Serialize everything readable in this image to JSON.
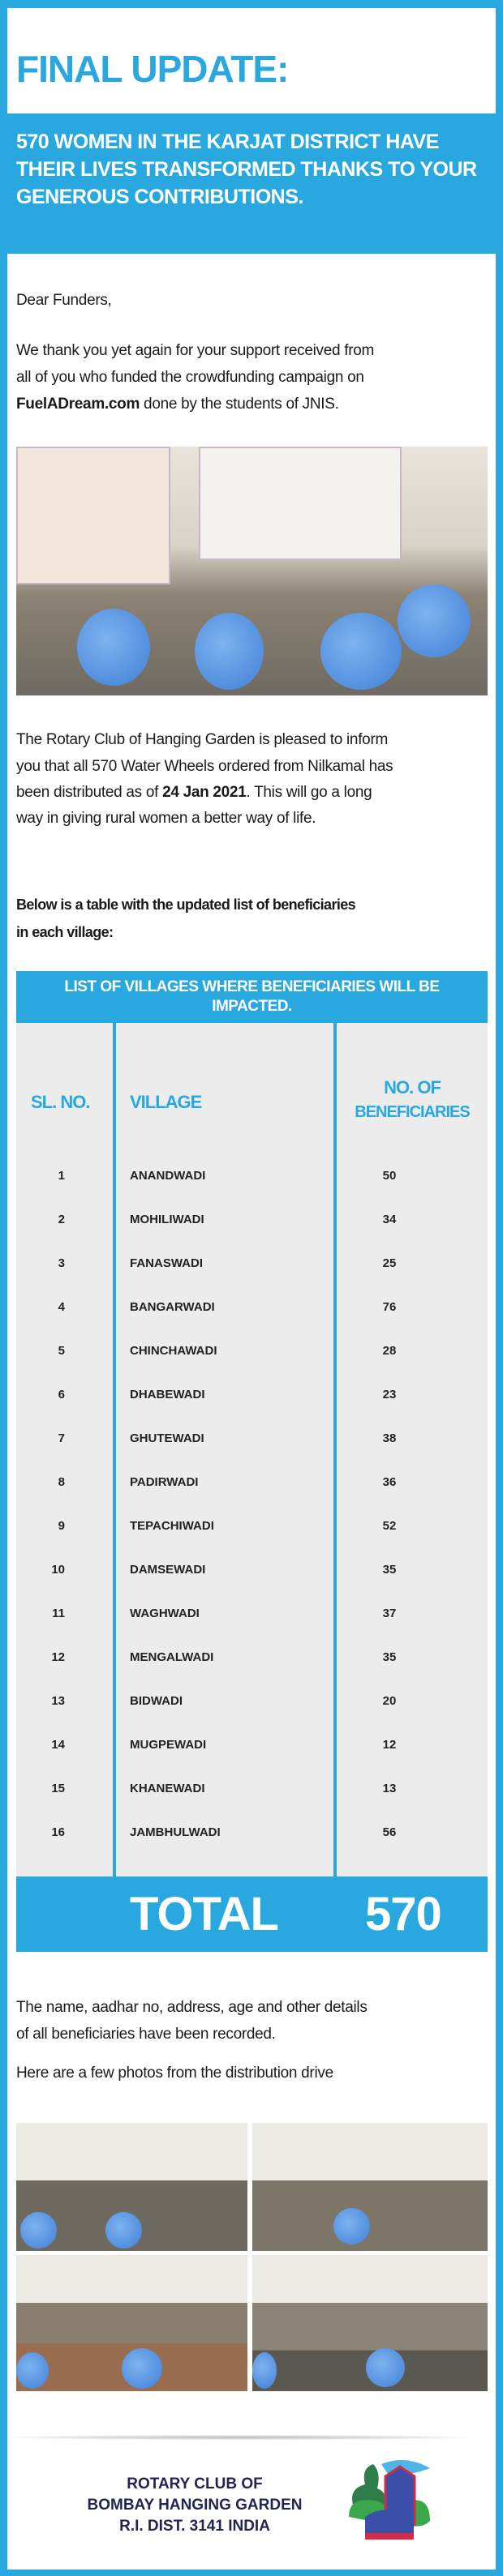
{
  "header": {
    "title": "FINAL UPDATE:"
  },
  "banner": {
    "lines": [
      "570 WOMEN IN THE KARJAT DISTRICT HAVE THEIR",
      "LIVES TRANSFORMED THANKS TO YOUR GENEROUS",
      "CONTRIBUTIONS."
    ]
  },
  "body": {
    "greeting": "Dear Funders,",
    "thanks_1": "We thank you yet again for your support received from",
    "thanks_2": "all of you who funded the crowdfunding campaign on",
    "thanks_link": "FuelADream.com",
    "thanks_3": " done by the students of JNIS.",
    "inform_1": "The Rotary Club of Hanging Garden is pleased to inform",
    "inform_2": "you that all 570 Water Wheels ordered from Nilkamal has",
    "inform_3a": "been distributed as of ",
    "inform_date": "24 Jan 2021",
    "inform_3b": ". This will go a long",
    "inform_4": "way in giving rural women a better way of life.",
    "table_intro_1": "Below is a table with the updated list of beneficiaries",
    "table_intro_2": "in each village:",
    "recorded_1": "The name, aadhar no, address, age and other details",
    "recorded_2": "of all beneficiaries have been recorded.",
    "photos_intro": "Here are a few photos from the distribution drive"
  },
  "table": {
    "title": "LIST OF VILLAGES WHERE BENEFICIARIES WILL BE IMPACTED.",
    "headers": {
      "sl": "SL. NO.",
      "village": "VILLAGE",
      "count_1": "NO. OF",
      "count_2": "BENEFICIARIES"
    },
    "rows": [
      {
        "sl": "1",
        "village": "ANANDWADI",
        "count": "50"
      },
      {
        "sl": "2",
        "village": "MOHILIWADI",
        "count": "34"
      },
      {
        "sl": "3",
        "village": "FANASWADI",
        "count": "25"
      },
      {
        "sl": "4",
        "village": "BANGARWADI",
        "count": "76"
      },
      {
        "sl": "5",
        "village": "CHINCHAWADI",
        "count": "28"
      },
      {
        "sl": "6",
        "village": "DHABEWADI",
        "count": "23"
      },
      {
        "sl": "7",
        "village": "GHUTEWADI",
        "count": "38"
      },
      {
        "sl": "8",
        "village": "PADIRWADI",
        "count": "36"
      },
      {
        "sl": "9",
        "village": "TEPACHIWADI",
        "count": "52"
      },
      {
        "sl": "10",
        "village": "DAMSEWADI",
        "count": "35"
      },
      {
        "sl": "11",
        "village": "WAGHWADI",
        "count": "37"
      },
      {
        "sl": "12",
        "village": "MENGALWADI",
        "count": "35"
      },
      {
        "sl": "13",
        "village": "BIDWADI",
        "count": "20"
      },
      {
        "sl": "14",
        "village": "MUGPEWADI",
        "count": "12"
      },
      {
        "sl": "15",
        "village": "KHANEWADI",
        "count": "13"
      },
      {
        "sl": "16",
        "village": "JAMBHULWADI",
        "count": "56"
      }
    ],
    "total_label": "TOTAL",
    "total_value": "570"
  },
  "footer": {
    "lines": [
      "ROTARY CLUB OF",
      "BOMBAY HANGING GARDEN",
      "R.I. DIST. 3141 INDIA"
    ]
  },
  "colors": {
    "accent": "#29a8e0",
    "panel": "#ececec",
    "footer_text": "#23244f"
  }
}
